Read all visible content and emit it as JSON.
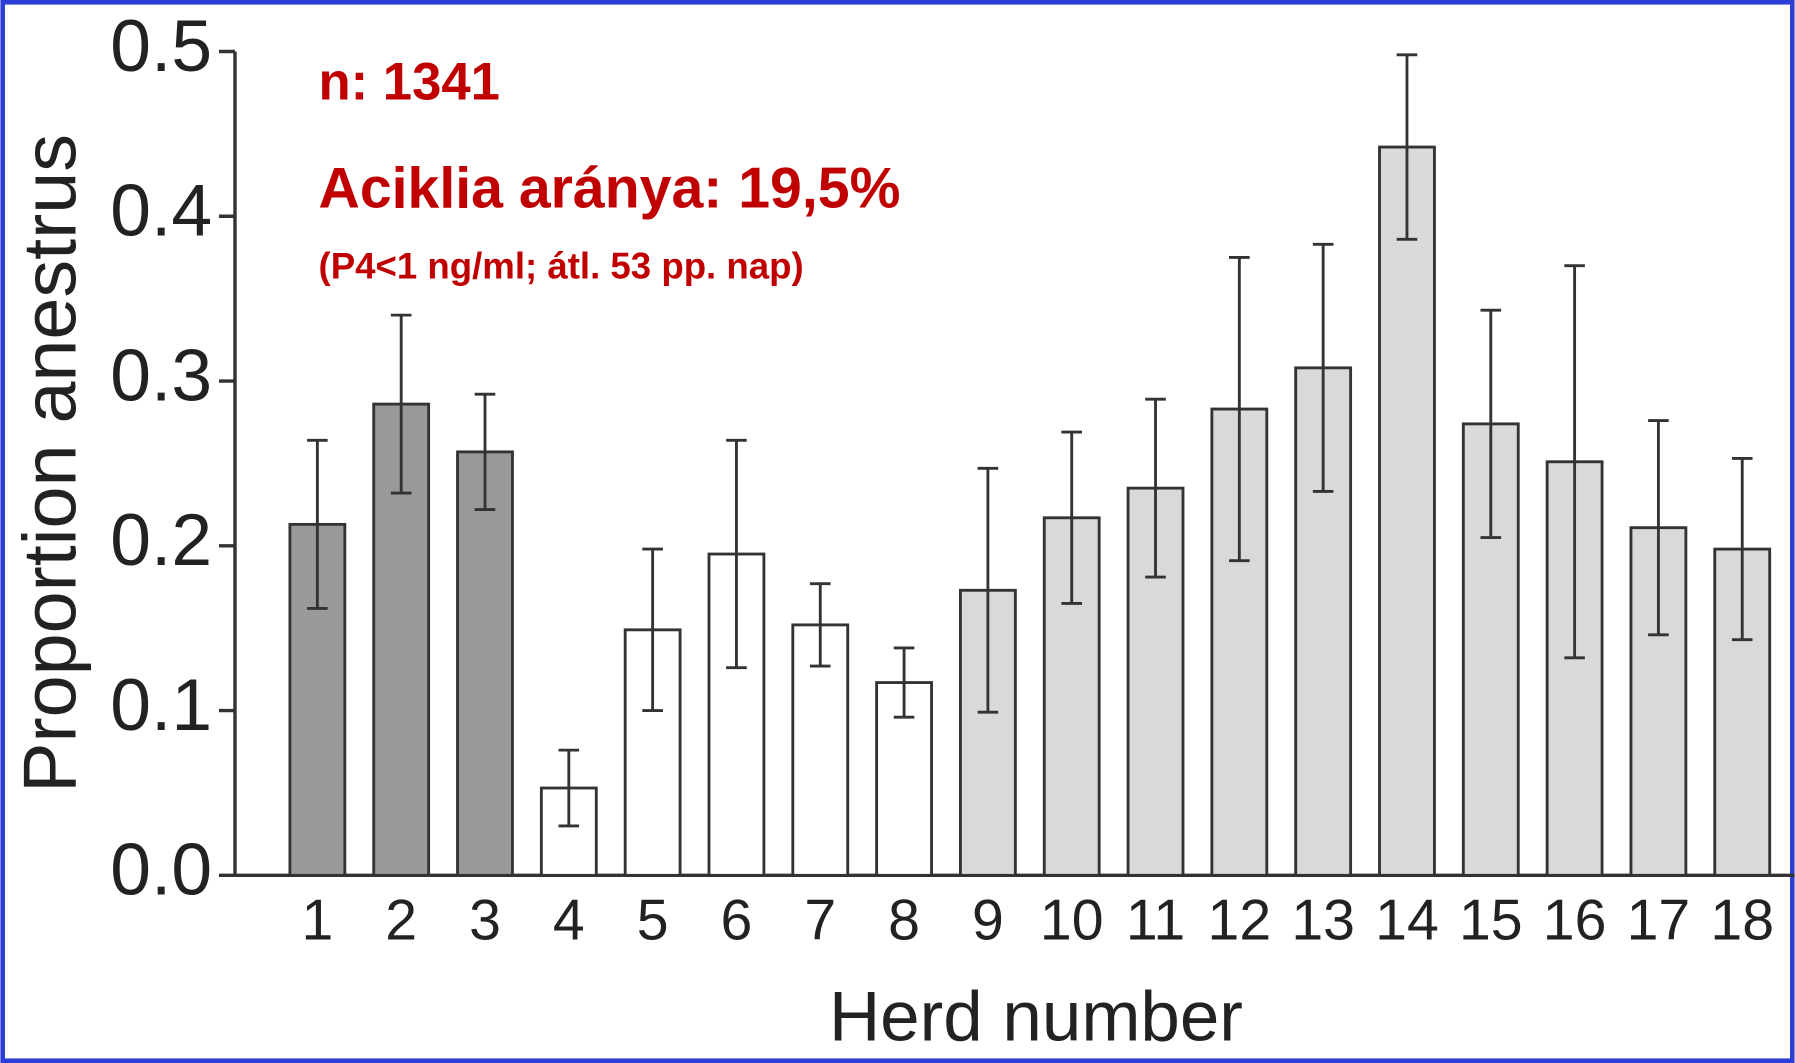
{
  "chart_data": {
    "type": "bar",
    "annotations": [
      "n: 1341",
      "Aciklia aránya: 19,5%",
      "(P4<1 ng/ml; átl. 53 pp. nap)"
    ],
    "xlabel": "Herd number",
    "ylabel": "Proportion anestrus",
    "categories": [
      "1",
      "2",
      "3",
      "4",
      "5",
      "6",
      "7",
      "8",
      "9",
      "10",
      "11",
      "12",
      "13",
      "14",
      "15",
      "16",
      "17",
      "18"
    ],
    "values": [
      0.213,
      0.286,
      0.257,
      0.053,
      0.149,
      0.195,
      0.152,
      0.117,
      0.173,
      0.217,
      0.235,
      0.283,
      0.308,
      0.442,
      0.274,
      0.251,
      0.211,
      0.198
    ],
    "errors": [
      0.051,
      0.054,
      0.035,
      0.023,
      0.049,
      0.069,
      0.025,
      0.021,
      0.074,
      0.052,
      0.054,
      0.092,
      0.075,
      0.056,
      0.069,
      0.119,
      0.065,
      0.055
    ],
    "colors": [
      "#999999",
      "#999999",
      "#999999",
      "#ffffff",
      "#ffffff",
      "#ffffff",
      "#ffffff",
      "#ffffff",
      "#d9d9d9",
      "#d9d9d9",
      "#d9d9d9",
      "#d9d9d9",
      "#d9d9d9",
      "#d9d9d9",
      "#d9d9d9",
      "#d9d9d9",
      "#d9d9d9",
      "#d9d9d9"
    ],
    "ylim": [
      0,
      0.5
    ],
    "yticks": [
      {
        "value": 0,
        "label": "0.0"
      },
      0.1,
      0.2,
      0.3,
      0.4,
      0.5
    ],
    "annotation_color": "#c00000"
  }
}
